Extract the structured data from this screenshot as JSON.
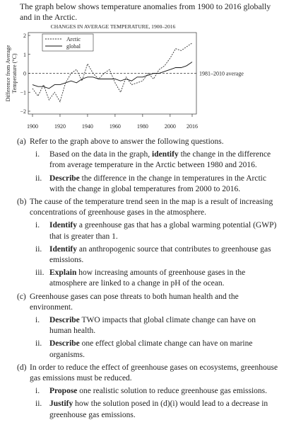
{
  "intro": "The graph below shows temperature anomalies from 1900 to 2016 globally and in the Arctic.",
  "chart": {
    "type": "line",
    "title": "CHANGES IN AVERAGE TEMPERATURE, 1900–2016",
    "y_label": [
      "Difference from Average",
      "Temperature (°C)"
    ],
    "reference_label": "1981–2010 average",
    "x": [
      1900,
      1904,
      1908,
      1912,
      1916,
      1920,
      1924,
      1928,
      1932,
      1936,
      1940,
      1944,
      1948,
      1952,
      1956,
      1960,
      1964,
      1968,
      1972,
      1976,
      1980,
      1984,
      1988,
      1992,
      1996,
      2000,
      2004,
      2008,
      2012,
      2016
    ],
    "series": [
      {
        "name": "Arctic",
        "color": "#333333",
        "dashed": true,
        "values": [
          -0.8,
          -1.2,
          -0.6,
          -1.4,
          -1.0,
          -1.5,
          -0.5,
          0,
          0.2,
          -0.4,
          0.5,
          0,
          -0.3,
          0,
          0.2,
          -0.5,
          -1.0,
          -0.2,
          -0.6,
          -0.5,
          -0.4,
          0,
          -0.3,
          0.2,
          0.4,
          0.8,
          1.3,
          1.2,
          1.4,
          1.6
        ]
      },
      {
        "name": "global",
        "color": "#111111",
        "dashed": false,
        "values": [
          -0.6,
          -0.7,
          -0.7,
          -0.8,
          -0.6,
          -0.6,
          -0.5,
          -0.4,
          -0.5,
          -0.3,
          -0.2,
          -0.2,
          -0.3,
          -0.3,
          -0.3,
          -0.3,
          -0.4,
          -0.3,
          -0.4,
          -0.2,
          -0.2,
          -0.1,
          0,
          0,
          0.1,
          0.2,
          0.3,
          0.3,
          0.4,
          0.6
        ]
      }
    ],
    "xlim": [
      1900,
      2016
    ],
    "xticks": [
      1900,
      1920,
      1940,
      1960,
      1980,
      2000,
      2016
    ],
    "ylim": [
      -2,
      2
    ],
    "yticks": [
      2,
      1,
      0,
      {
        "value": -1,
        "label": "−1"
      },
      {
        "value": -2,
        "label": "−2"
      }
    ]
  },
  "questions": [
    {
      "label": "(a)",
      "parts": [
        {
          "text": "Refer to the graph above to answer the following questions.",
          "bold": false
        }
      ],
      "items": [
        {
          "label": "i.",
          "parts": [
            {
              "text": "Based on the data in the graph, ",
              "bold": false
            },
            {
              "text": "identify",
              "bold": true
            },
            {
              "text": " the change in the difference from average temperature in the Arctic between 1980 and 2016.",
              "bold": false
            }
          ]
        },
        {
          "label": "ii.",
          "parts": [
            {
              "text": "Describe",
              "bold": true
            },
            {
              "text": " the difference in the change in temperatures in the Arctic with the change in global temperatures from 2000 to 2016.",
              "bold": false
            }
          ]
        }
      ]
    },
    {
      "label": "(b)",
      "parts": [
        {
          "text": "The cause of the temperature trend seen in the map is a result of increasing concentrations of greenhouse gases in the atmosphere.",
          "bold": false
        }
      ],
      "items": [
        {
          "label": "i.",
          "parts": [
            {
              "text": "Identify",
              "bold": true
            },
            {
              "text": " a greenhouse gas that has a global warming potential (GWP) that is greater than 1.",
              "bold": false
            }
          ]
        },
        {
          "label": "ii.",
          "parts": [
            {
              "text": "Identify",
              "bold": true
            },
            {
              "text": " an anthropogenic source that contributes to greenhouse gas emissions.",
              "bold": false
            }
          ]
        },
        {
          "label": "iii.",
          "parts": [
            {
              "text": "Explain",
              "bold": true
            },
            {
              "text": " how increasing amounts of greenhouse gases in the atmosphere are linked to a change in pH of the ocean.",
              "bold": false
            }
          ]
        }
      ]
    },
    {
      "label": "(c)",
      "parts": [
        {
          "text": "Greenhouse gases can pose threats to both human health and the environment.",
          "bold": false
        }
      ],
      "items": [
        {
          "label": "i.",
          "parts": [
            {
              "text": "Describe",
              "bold": true
            },
            {
              "text": " TWO impacts that global climate change can have on human health.",
              "bold": false
            }
          ]
        },
        {
          "label": "ii.",
          "parts": [
            {
              "text": "Describe",
              "bold": true
            },
            {
              "text": " one effect global climate change can have on marine organisms.",
              "bold": false
            }
          ]
        }
      ]
    },
    {
      "label": "(d)",
      "parts": [
        {
          "text": "In order to reduce the effect of greenhouse gases on ecosystems, greenhouse gas emissions must be reduced.",
          "bold": false
        }
      ],
      "items": [
        {
          "label": "i.",
          "parts": [
            {
              "text": "Propose",
              "bold": true
            },
            {
              "text": " one realistic solution to reduce greenhouse gas emissions.",
              "bold": false
            }
          ]
        },
        {
          "label": "ii.",
          "parts": [
            {
              "text": "Justify",
              "bold": true
            },
            {
              "text": " how the solution posed in (d)(i) would lead to a decrease in greenhouse gas emissions.",
              "bold": false
            }
          ]
        }
      ]
    }
  ]
}
